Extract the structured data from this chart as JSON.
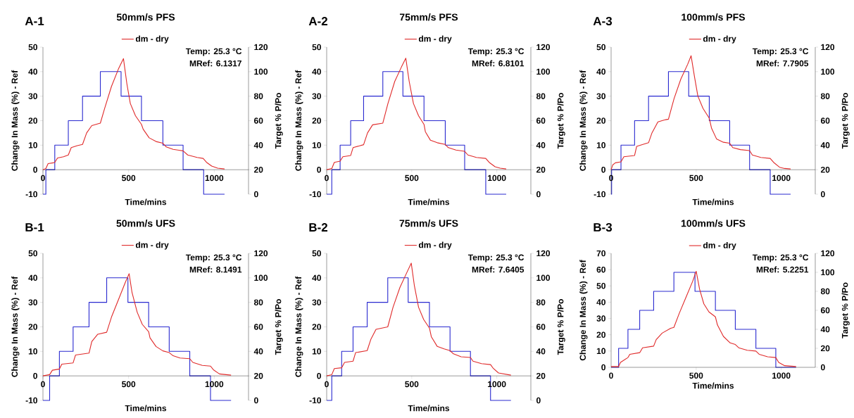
{
  "chart_data": [
    {
      "type": "line",
      "title": "50mm/s PFS",
      "annotations": [
        "A-1",
        "Temp:  25.3 °C",
        "MRef:  6.1317"
      ],
      "xlabel": "Time/mins",
      "ylabel": "Change In Mass (%) - Ref",
      "y2label": "Target % P/Po",
      "legend": "top",
      "xlim": [
        0,
        1200
      ],
      "xticks": [
        0,
        500,
        1000
      ],
      "ylim": [
        -10,
        50
      ],
      "yticks": [
        -10,
        0,
        10,
        20,
        30,
        40,
        50
      ],
      "y2lim": [
        0,
        120
      ],
      "y2ticks": [
        0,
        20,
        40,
        60,
        80,
        100,
        120
      ],
      "series": [
        {
          "name": "dm - dry",
          "color": "#e02a2a",
          "x": [
            0,
            17,
            30,
            60,
            69,
            85,
            120,
            148,
            165,
            200,
            231,
            255,
            285,
            320,
            335,
            360,
            400,
            440,
            470,
            490,
            510,
            540,
            575,
            585,
            620,
            660,
            700,
            720,
            760,
            818,
            845,
            900,
            935,
            955,
            985,
            1020,
            1060
          ],
          "values": [
            0,
            0.5,
            2.5,
            2.8,
            3,
            4.8,
            5.3,
            6,
            9,
            9.8,
            10.3,
            15,
            18,
            18.7,
            19,
            25,
            34,
            41,
            45.3,
            35,
            27,
            22,
            18.5,
            16.5,
            13,
            11.5,
            10.8,
            9.3,
            8.3,
            7.7,
            6,
            5,
            4.6,
            3,
            1.5,
            0.6,
            0.3
          ]
        },
        {
          "type": "step",
          "axis": "y2",
          "color": "#2a2ad0",
          "x": [
            0,
            17,
            69,
            148,
            231,
            335,
            456,
            575,
            700,
            818,
            938,
            1060
          ],
          "values": [
            0,
            20,
            40,
            60,
            80,
            100,
            80,
            60,
            40,
            20,
            0,
            0
          ]
        }
      ]
    },
    {
      "type": "line",
      "title": "75mm/s PFS",
      "annotations": [
        "A-2",
        "Temp:  25.3 °C",
        "MRef:  6.8101"
      ],
      "xlabel": "Time/mins",
      "ylabel": "Change In Mass (%) - Ref",
      "y2label": "Target % P/Po",
      "legend": "top",
      "xlim": [
        0,
        1200
      ],
      "xticks": [
        0,
        500,
        1000
      ],
      "ylim": [
        -10,
        50
      ],
      "yticks": [
        -10,
        0,
        10,
        20,
        30,
        40,
        50
      ],
      "y2lim": [
        0,
        120
      ],
      "y2ticks": [
        0,
        20,
        40,
        60,
        80,
        100,
        120
      ],
      "series": [
        {
          "name": "dm - dry",
          "color": "#e02a2a",
          "x": [
            0,
            30,
            45,
            79,
            95,
            141,
            155,
            217,
            240,
            270,
            330,
            360,
            400,
            440,
            465,
            485,
            510,
            540,
            572,
            580,
            610,
            650,
            697,
            715,
            760,
            811,
            830,
            880,
            935,
            955,
            990,
            1020,
            1055
          ],
          "values": [
            0,
            0.5,
            3,
            3.5,
            5.3,
            5.8,
            9,
            10.2,
            15,
            18.3,
            19,
            27,
            36,
            42,
            45.5,
            36,
            27,
            22,
            18.5,
            15.5,
            12,
            11,
            10.3,
            9,
            8,
            7.5,
            6,
            5,
            4.6,
            3,
            1.2,
            0.6,
            0.3
          ]
        },
        {
          "type": "step",
          "axis": "y2",
          "color": "#2a2ad0",
          "x": [
            0,
            30,
            79,
            141,
            217,
            330,
            448,
            572,
            697,
            811,
            935,
            1055
          ],
          "values": [
            0,
            20,
            40,
            60,
            80,
            100,
            80,
            60,
            40,
            20,
            0,
            0
          ]
        }
      ]
    },
    {
      "type": "line",
      "title": "100mm/s PFS",
      "annotations": [
        "A-3",
        "Temp:  25.3 °C",
        "MRef:  7.7905"
      ],
      "xlabel": "Time/mins",
      "ylabel": "Change In Mass (%) - Ref",
      "y2label": "Target % P/Po",
      "legend": "top",
      "xlim": [
        0,
        1200
      ],
      "xticks": [
        0,
        500,
        1000
      ],
      "ylim": [
        -10,
        50
      ],
      "yticks": [
        -10,
        0,
        10,
        20,
        30,
        40,
        50
      ],
      "y2lim": [
        0,
        120
      ],
      "y2ticks": [
        0,
        20,
        40,
        60,
        80,
        100,
        120
      ],
      "series": [
        {
          "name": "dm - dry",
          "color": "#e02a2a",
          "x": [
            0,
            10,
            25,
            58,
            75,
            138,
            150,
            220,
            240,
            275,
            320,
            337,
            370,
            410,
            450,
            470,
            490,
            510,
            540,
            577,
            590,
            620,
            660,
            697,
            715,
            760,
            814,
            830,
            880,
            935,
            955,
            990,
            1020,
            1055
          ],
          "values": [
            0,
            2,
            2.8,
            3.2,
            5.3,
            5.8,
            9.5,
            11,
            15,
            19.5,
            20.4,
            20.6,
            29,
            37,
            43,
            46.5,
            38,
            30,
            25,
            21,
            17,
            12.5,
            11.2,
            10.8,
            9,
            8.2,
            7.8,
            6,
            5,
            4.6,
            3,
            1,
            0.5,
            0.3
          ]
        },
        {
          "type": "step",
          "axis": "y2",
          "color": "#2a2ad0",
          "x": [
            0,
            3,
            58,
            138,
            220,
            337,
            456,
            577,
            697,
            814,
            935,
            1055
          ],
          "values": [
            0,
            20,
            40,
            60,
            80,
            100,
            80,
            60,
            40,
            20,
            0,
            0
          ]
        }
      ]
    },
    {
      "type": "line",
      "title": "50mm/s UFS",
      "annotations": [
        "B-1",
        "Temp:  25.3 °C",
        "MRef:  8.1491"
      ],
      "xlabel": "Time/mins",
      "ylabel": "Change In Mass (%) - Ref",
      "y2label": "Target % P/Po",
      "legend": "top",
      "xlim": [
        0,
        1200
      ],
      "xticks": [
        0,
        500,
        1000
      ],
      "ylim": [
        -10,
        50
      ],
      "yticks": [
        -10,
        0,
        10,
        20,
        30,
        40,
        50
      ],
      "y2lim": [
        0,
        120
      ],
      "y2ticks": [
        0,
        20,
        40,
        60,
        80,
        100,
        120
      ],
      "series": [
        {
          "name": "dm - dry",
          "color": "#e02a2a",
          "x": [
            0,
            39,
            55,
            96,
            110,
            176,
            190,
            269,
            285,
            320,
            372,
            400,
            440,
            480,
            503,
            520,
            550,
            580,
            617,
            625,
            660,
            700,
            737,
            760,
            800,
            857,
            875,
            930,
            978,
            995,
            1030,
            1098
          ],
          "values": [
            0,
            0.5,
            2.3,
            2.8,
            4.8,
            5.3,
            8.5,
            9.3,
            14,
            17,
            17.8,
            24,
            31,
            38,
            41.7,
            34,
            26,
            21,
            18,
            15.5,
            12,
            10.2,
            9.5,
            8.2,
            7.3,
            7,
            5.5,
            4.3,
            4,
            2.5,
            0.8,
            0.3
          ]
        },
        {
          "type": "step",
          "axis": "y2",
          "color": "#2a2ad0",
          "x": [
            0,
            39,
            96,
            176,
            269,
            372,
            496,
            617,
            737,
            857,
            978,
            1098
          ],
          "values": [
            0,
            20,
            40,
            60,
            80,
            100,
            80,
            60,
            40,
            20,
            0,
            0
          ]
        }
      ]
    },
    {
      "type": "line",
      "title": "75mm/s UFS",
      "annotations": [
        "B-2",
        "Temp:  25.3 °C",
        "MRef:  7.6405"
      ],
      "xlabel": "Time/mins",
      "ylabel": "Change In Mass (%) - Ref",
      "y2label": "Target % P/Po",
      "legend": "top",
      "xlim": [
        0,
        1200
      ],
      "xticks": [
        0,
        500,
        1000
      ],
      "ylim": [
        -10,
        50
      ],
      "yticks": [
        -10,
        0,
        10,
        20,
        30,
        40,
        50
      ],
      "y2lim": [
        0,
        120
      ],
      "y2ticks": [
        0,
        20,
        40,
        60,
        80,
        100,
        120
      ],
      "series": [
        {
          "name": "dm - dry",
          "color": "#e02a2a",
          "x": [
            0,
            30,
            45,
            88,
            105,
            155,
            170,
            238,
            260,
            290,
            359,
            390,
            430,
            470,
            497,
            515,
            540,
            570,
            604,
            615,
            650,
            690,
            725,
            745,
            790,
            845,
            860,
            910,
            963,
            980,
            1010,
            1083
          ],
          "values": [
            0,
            0.5,
            3,
            3.3,
            5.5,
            6,
            9.5,
            10.3,
            15,
            19,
            20,
            28,
            36,
            42,
            46,
            37,
            28,
            23,
            19.5,
            16,
            12,
            11,
            10.3,
            9,
            7.8,
            7.5,
            6,
            5,
            4.6,
            3,
            1.2,
            0.3
          ]
        },
        {
          "type": "step",
          "axis": "y2",
          "color": "#2a2ad0",
          "x": [
            0,
            30,
            88,
            155,
            238,
            359,
            479,
            604,
            725,
            845,
            963,
            1083
          ],
          "values": [
            0,
            20,
            40,
            60,
            80,
            100,
            80,
            60,
            40,
            20,
            0,
            0
          ]
        }
      ]
    },
    {
      "type": "line",
      "title": "100mm/s UFS",
      "annotations": [
        "B-3",
        "Temp:  25.3 °C",
        "MRef:  5.2251"
      ],
      "xlabel": "Time/mins",
      "ylabel": "Change In Mass (%) - Ref",
      "y2label": "Target % P/Po",
      "legend": "top",
      "xlim": [
        0,
        1200
      ],
      "xticks": [
        0,
        500,
        1000
      ],
      "ylim": [
        0,
        70
      ],
      "yticks": [
        0,
        10,
        20,
        30,
        40,
        50,
        60,
        70
      ],
      "y2lim": [
        0,
        120
      ],
      "y2ticks": [
        0,
        20,
        40,
        60,
        80,
        100,
        120
      ],
      "series": [
        {
          "name": "dm - dry",
          "color": "#e02a2a",
          "x": [
            0,
            44,
            55,
            99,
            110,
            168,
            185,
            250,
            265,
            300,
            350,
            369,
            400,
            440,
            480,
            500,
            520,
            545,
            575,
            613,
            625,
            660,
            700,
            730,
            750,
            800,
            851,
            870,
            920,
            968,
            985,
            1020,
            1087
          ],
          "values": [
            0.5,
            0.5,
            3,
            6,
            8,
            9,
            12,
            13,
            17,
            21,
            24,
            24.5,
            33,
            43,
            53,
            59,
            48,
            39,
            34,
            31,
            26,
            19,
            15,
            14,
            12,
            10.5,
            10,
            8,
            6.5,
            6,
            3,
            1,
            0.5
          ]
        },
        {
          "type": "step",
          "axis": "y2",
          "color": "#2a2ad0",
          "x": [
            0,
            44,
            99,
            168,
            250,
            369,
            493,
            613,
            730,
            851,
            968,
            1087
          ],
          "values": [
            0,
            20,
            40,
            60,
            80,
            100,
            80,
            60,
            40,
            20,
            0,
            0
          ]
        }
      ]
    }
  ]
}
